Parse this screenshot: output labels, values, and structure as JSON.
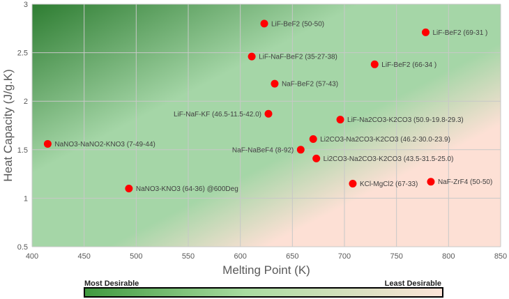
{
  "chart_data": {
    "type": "scatter",
    "title": "",
    "xlabel": "Melting Point (K)",
    "ylabel": "Heat Capacity (J/g.K)",
    "xlim": [
      400,
      850
    ],
    "ylim": [
      0.5,
      3
    ],
    "x_ticks": [
      "400",
      "450",
      "500",
      "550",
      "600",
      "650",
      "700",
      "750",
      "800",
      "850"
    ],
    "y_ticks": [
      "0.5",
      "1",
      "1.5",
      "2",
      "2.5",
      "3"
    ],
    "grid": true,
    "marker_color": "#ff0000",
    "points": [
      {
        "label": "LiF-BeF2 (50-50)",
        "x": 623,
        "y": 2.8,
        "label_side": "right"
      },
      {
        "label": "LiF-BeF2 (69-31 )",
        "x": 778,
        "y": 2.71,
        "label_side": "right"
      },
      {
        "label": "LiF-NaF-BeF2 (35-27-38)",
        "x": 611,
        "y": 2.46,
        "label_side": "right"
      },
      {
        "label": "LiF-BeF2  (66-34 )",
        "x": 729,
        "y": 2.38,
        "label_side": "right"
      },
      {
        "label": "NaF-BeF2 (57-43)",
        "x": 633,
        "y": 2.18,
        "label_side": "right"
      },
      {
        "label": "LiF-NaF-KF (46.5-11.5-42.0)",
        "x": 627,
        "y": 1.87,
        "label_side": "left"
      },
      {
        "label": "LiF-Na2CO3-K2CO3 (50.9-19.8-29.3)",
        "x": 696,
        "y": 1.81,
        "label_side": "right"
      },
      {
        "label": "Li2CO3-Na2CO3-K2CO3 (46.2-30.0-23.9)",
        "x": 670,
        "y": 1.61,
        "label_side": "right"
      },
      {
        "label": "NaNO3-NaNO2-KNO3 (7-49-44)",
        "x": 415,
        "y": 1.56,
        "label_side": "right"
      },
      {
        "label": "NaF-NaBeF4 (8-92)",
        "x": 658,
        "y": 1.5,
        "label_side": "left"
      },
      {
        "label": "Li2CO3-Na2CO3-K2CO3 (43.5-31.5-25.0)",
        "x": 673,
        "y": 1.41,
        "label_side": "right"
      },
      {
        "label": "KCl-MgCl2 (67-33)",
        "x": 708,
        "y": 1.15,
        "label_side": "right"
      },
      {
        "label": "NaF-ZrF4 (50-50)",
        "x": 783,
        "y": 1.17,
        "label_side": "right"
      },
      {
        "label": "NaNO3-KNO3 (64-36) @600Deg",
        "x": 493,
        "y": 1.1,
        "label_side": "right"
      }
    ],
    "background": {
      "desirable_color": "#2e7d32",
      "mid_color": "#a5d6a7",
      "undesirable_color": "#fde0d5"
    },
    "legend": {
      "left_label": "Most Desirable",
      "right_label": "Least Desirable",
      "left_color": "#3f9a3f",
      "mid_color": "#a8dca0",
      "right_color": "#fde3d8"
    }
  }
}
